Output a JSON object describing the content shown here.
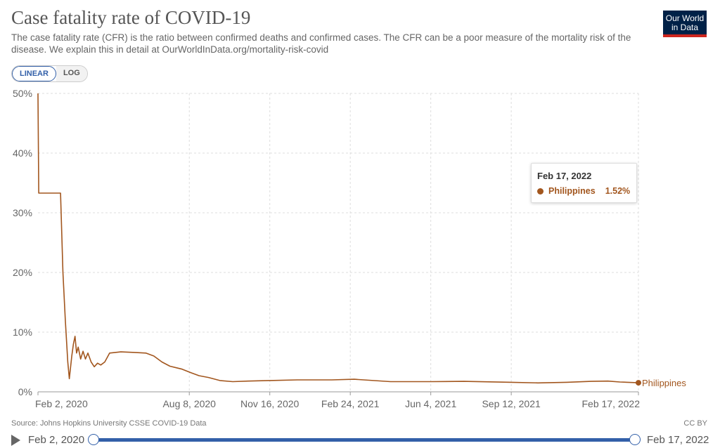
{
  "header": {
    "title": "Case fatality rate of COVID-19",
    "subtitle": "The case fatality rate (CFR) is the ratio between confirmed deaths and confirmed cases. The CFR can be a poor measure of the mortality risk of the disease. We explain this in detail at OurWorldInData.org/mortality-risk-covid",
    "logo_line1": "Our World",
    "logo_line2": "in Data"
  },
  "controls": {
    "linear_label": "LINEAR",
    "log_label": "LOG",
    "selected": "LINEAR"
  },
  "footer": {
    "source": "Source: Johns Hopkins University CSSE COVID-19 Data",
    "license": "CC BY"
  },
  "timeline": {
    "start": "Feb 2, 2020",
    "end": "Feb 17, 2022"
  },
  "tooltip": {
    "date": "Feb 17, 2022",
    "entity": "Philippines",
    "value": "1.52%"
  },
  "colors": {
    "series": "#a2561e",
    "accent": "#3360a9"
  },
  "chart_data": {
    "type": "line",
    "title": "Case fatality rate of COVID-19",
    "xlabel": "",
    "ylabel": "",
    "ylim": [
      0,
      50
    ],
    "y_ticks": [
      0,
      10,
      20,
      30,
      40,
      50
    ],
    "y_tick_labels": [
      "0%",
      "10%",
      "20%",
      "30%",
      "40%",
      "50%"
    ],
    "x_tick_labels": [
      "Feb 2, 2020",
      "Aug 8, 2020",
      "Nov 16, 2020",
      "Feb 24, 2021",
      "Jun 4, 2021",
      "Sep 12, 2021",
      "Feb 17, 2022"
    ],
    "x_tick_dates": [
      "2020-02-02",
      "2020-08-08",
      "2020-11-16",
      "2021-02-24",
      "2021-06-04",
      "2021-09-12",
      "2022-02-17"
    ],
    "x_range": [
      "2020-02-02",
      "2022-02-17"
    ],
    "grid": true,
    "series": [
      {
        "name": "Philippines",
        "points": [
          [
            "2020-02-02",
            50
          ],
          [
            "2020-02-03",
            33.3
          ],
          [
            "2020-02-20",
            33.3
          ],
          [
            "2020-03-01",
            33.3
          ],
          [
            "2020-03-04",
            20
          ],
          [
            "2020-03-07",
            12
          ],
          [
            "2020-03-10",
            5
          ],
          [
            "2020-03-12",
            2.2
          ],
          [
            "2020-03-15",
            6
          ],
          [
            "2020-03-17",
            8
          ],
          [
            "2020-03-19",
            9.3
          ],
          [
            "2020-03-21",
            6.5
          ],
          [
            "2020-03-23",
            7.5
          ],
          [
            "2020-03-26",
            5.5
          ],
          [
            "2020-03-29",
            6.8
          ],
          [
            "2020-04-01",
            5.5
          ],
          [
            "2020-04-04",
            6.5
          ],
          [
            "2020-04-08",
            5
          ],
          [
            "2020-04-12",
            4.2
          ],
          [
            "2020-04-16",
            4.8
          ],
          [
            "2020-04-20",
            4.5
          ],
          [
            "2020-04-25",
            5
          ],
          [
            "2020-05-01",
            6.5
          ],
          [
            "2020-05-15",
            6.7
          ],
          [
            "2020-06-01",
            6.6
          ],
          [
            "2020-06-15",
            6.5
          ],
          [
            "2020-06-25",
            6
          ],
          [
            "2020-07-05",
            5
          ],
          [
            "2020-07-15",
            4.3
          ],
          [
            "2020-07-30",
            3.8
          ],
          [
            "2020-08-10",
            3.2
          ],
          [
            "2020-08-20",
            2.7
          ],
          [
            "2020-09-01",
            2.4
          ],
          [
            "2020-09-15",
            1.9
          ],
          [
            "2020-10-01",
            1.7
          ],
          [
            "2020-10-20",
            1.8
          ],
          [
            "2020-11-16",
            1.9
          ],
          [
            "2020-12-20",
            2.0
          ],
          [
            "2021-02-01",
            2.0
          ],
          [
            "2021-03-01",
            2.1
          ],
          [
            "2021-04-15",
            1.7
          ],
          [
            "2021-06-04",
            1.7
          ],
          [
            "2021-07-15",
            1.75
          ],
          [
            "2021-09-12",
            1.6
          ],
          [
            "2021-10-15",
            1.5
          ],
          [
            "2021-11-20",
            1.6
          ],
          [
            "2021-12-20",
            1.75
          ],
          [
            "2022-01-10",
            1.8
          ],
          [
            "2022-01-25",
            1.65
          ],
          [
            "2022-02-17",
            1.52
          ]
        ]
      }
    ]
  }
}
